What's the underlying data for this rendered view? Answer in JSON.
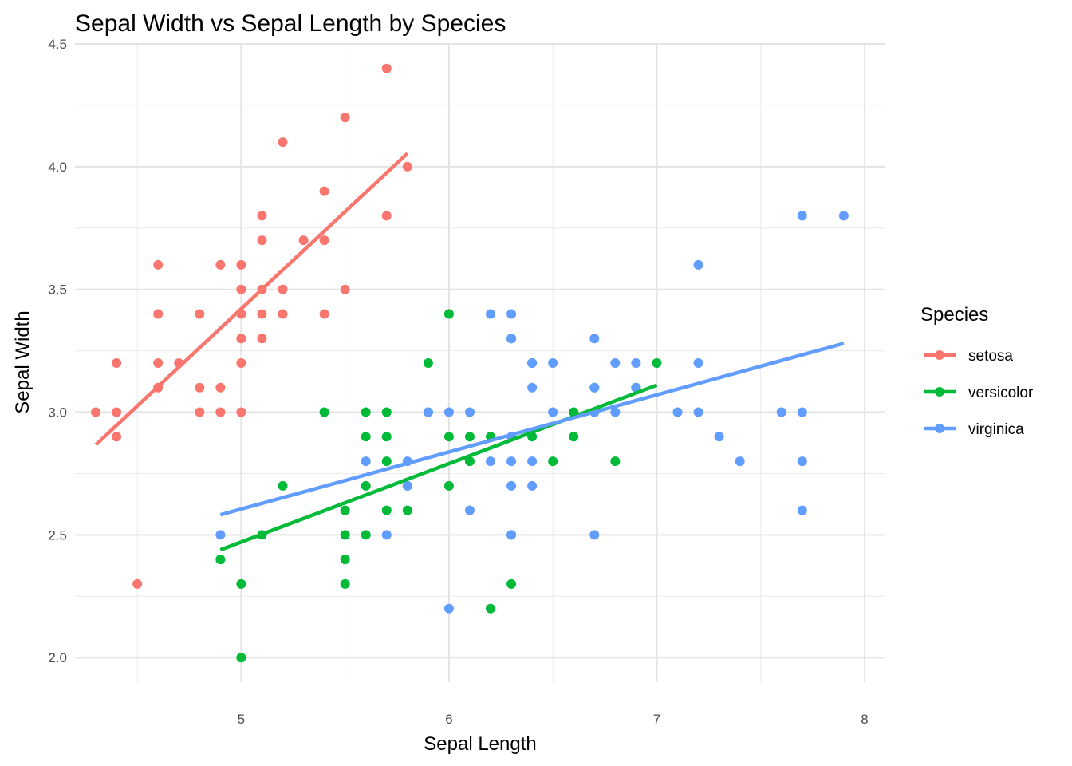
{
  "chart_data": {
    "type": "scatter",
    "title": "Sepal Width vs Sepal Length by Species",
    "xlabel": "Sepal Length",
    "ylabel": "Sepal Width",
    "xlim": [
      4.2,
      8.1
    ],
    "ylim": [
      1.9,
      4.5
    ],
    "x_ticks": [
      5,
      6,
      7,
      8
    ],
    "y_ticks": [
      2.0,
      2.5,
      3.0,
      3.5,
      4.0,
      4.5
    ],
    "x_tick_labels": [
      "5",
      "6",
      "7",
      "8"
    ],
    "y_tick_labels": [
      "2.0",
      "2.5",
      "3.0",
      "3.5",
      "4.0",
      "4.5"
    ],
    "grid": true,
    "legend": {
      "title": "Species",
      "position": "right"
    },
    "series": [
      {
        "name": "setosa",
        "color": "#F8766D",
        "points": [
          [
            4.3,
            3.0
          ],
          [
            4.4,
            3.2
          ],
          [
            4.4,
            3.0
          ],
          [
            4.4,
            2.9
          ],
          [
            4.5,
            2.3
          ],
          [
            4.6,
            3.6
          ],
          [
            4.6,
            3.4
          ],
          [
            4.6,
            3.2
          ],
          [
            4.6,
            3.1
          ],
          [
            4.7,
            3.2
          ],
          [
            4.8,
            3.4
          ],
          [
            4.8,
            3.1
          ],
          [
            4.8,
            3.0
          ],
          [
            4.9,
            3.6
          ],
          [
            4.9,
            3.1
          ],
          [
            4.9,
            3.0
          ],
          [
            5.0,
            3.6
          ],
          [
            5.0,
            3.5
          ],
          [
            5.0,
            3.4
          ],
          [
            5.0,
            3.3
          ],
          [
            5.0,
            3.2
          ],
          [
            5.0,
            3.0
          ],
          [
            5.1,
            3.8
          ],
          [
            5.1,
            3.7
          ],
          [
            5.1,
            3.5
          ],
          [
            5.1,
            3.4
          ],
          [
            5.1,
            3.3
          ],
          [
            5.2,
            4.1
          ],
          [
            5.2,
            3.5
          ],
          [
            5.2,
            3.4
          ],
          [
            5.3,
            3.7
          ],
          [
            5.4,
            3.9
          ],
          [
            5.4,
            3.7
          ],
          [
            5.4,
            3.4
          ],
          [
            5.5,
            4.2
          ],
          [
            5.5,
            3.5
          ],
          [
            5.7,
            4.4
          ],
          [
            5.7,
            3.8
          ],
          [
            5.8,
            4.0
          ]
        ],
        "fit": {
          "x": [
            4.3,
            5.8
          ],
          "y": [
            2.867,
            4.054
          ]
        }
      },
      {
        "name": "versicolor",
        "color": "#00BA38",
        "points": [
          [
            4.9,
            2.4
          ],
          [
            5.0,
            2.3
          ],
          [
            5.0,
            2.0
          ],
          [
            5.1,
            2.5
          ],
          [
            5.2,
            2.7
          ],
          [
            5.4,
            3.0
          ],
          [
            5.5,
            2.6
          ],
          [
            5.5,
            2.5
          ],
          [
            5.5,
            2.4
          ],
          [
            5.5,
            2.3
          ],
          [
            5.6,
            3.0
          ],
          [
            5.6,
            2.9
          ],
          [
            5.6,
            2.7
          ],
          [
            5.6,
            2.5
          ],
          [
            5.7,
            3.0
          ],
          [
            5.7,
            2.9
          ],
          [
            5.7,
            2.8
          ],
          [
            5.7,
            2.6
          ],
          [
            5.8,
            2.7
          ],
          [
            5.8,
            2.6
          ],
          [
            5.9,
            3.2
          ],
          [
            5.9,
            3.0
          ],
          [
            6.0,
            3.4
          ],
          [
            6.0,
            2.9
          ],
          [
            6.0,
            2.7
          ],
          [
            6.1,
            2.9
          ],
          [
            6.1,
            2.8
          ],
          [
            6.2,
            2.9
          ],
          [
            6.2,
            2.2
          ],
          [
            6.3,
            3.3
          ],
          [
            6.3,
            2.5
          ],
          [
            6.3,
            2.3
          ],
          [
            6.4,
            3.2
          ],
          [
            6.4,
            2.9
          ],
          [
            6.5,
            2.8
          ],
          [
            6.6,
            3.0
          ],
          [
            6.6,
            2.9
          ],
          [
            6.7,
            3.1
          ],
          [
            6.7,
            3.0
          ],
          [
            6.8,
            2.8
          ],
          [
            6.9,
            3.1
          ],
          [
            7.0,
            3.2
          ]
        ],
        "fit": {
          "x": [
            4.9,
            7.0
          ],
          "y": [
            2.439,
            3.11
          ]
        }
      },
      {
        "name": "virginica",
        "color": "#619CFF",
        "points": [
          [
            4.9,
            2.5
          ],
          [
            5.6,
            2.8
          ],
          [
            5.7,
            2.5
          ],
          [
            5.8,
            2.8
          ],
          [
            5.8,
            2.7
          ],
          [
            5.9,
            3.0
          ],
          [
            6.0,
            3.0
          ],
          [
            6.0,
            2.2
          ],
          [
            6.1,
            3.0
          ],
          [
            6.1,
            2.6
          ],
          [
            6.2,
            3.4
          ],
          [
            6.2,
            2.8
          ],
          [
            6.3,
            3.4
          ],
          [
            6.3,
            3.3
          ],
          [
            6.3,
            2.9
          ],
          [
            6.3,
            2.8
          ],
          [
            6.3,
            2.7
          ],
          [
            6.3,
            2.5
          ],
          [
            6.4,
            3.2
          ],
          [
            6.4,
            3.1
          ],
          [
            6.4,
            2.8
          ],
          [
            6.4,
            2.7
          ],
          [
            6.5,
            3.2
          ],
          [
            6.5,
            3.0
          ],
          [
            6.7,
            3.3
          ],
          [
            6.7,
            3.1
          ],
          [
            6.7,
            3.0
          ],
          [
            6.7,
            2.5
          ],
          [
            6.8,
            3.2
          ],
          [
            6.8,
            3.0
          ],
          [
            6.9,
            3.2
          ],
          [
            6.9,
            3.1
          ],
          [
            7.1,
            3.0
          ],
          [
            7.2,
            3.6
          ],
          [
            7.2,
            3.2
          ],
          [
            7.2,
            3.0
          ],
          [
            7.3,
            2.9
          ],
          [
            7.4,
            2.8
          ],
          [
            7.6,
            3.0
          ],
          [
            7.7,
            3.8
          ],
          [
            7.7,
            3.0
          ],
          [
            7.7,
            2.8
          ],
          [
            7.7,
            2.6
          ],
          [
            7.9,
            3.8
          ]
        ],
        "fit": {
          "x": [
            4.9,
            7.9
          ],
          "y": [
            2.582,
            3.28
          ]
        }
      }
    ]
  }
}
